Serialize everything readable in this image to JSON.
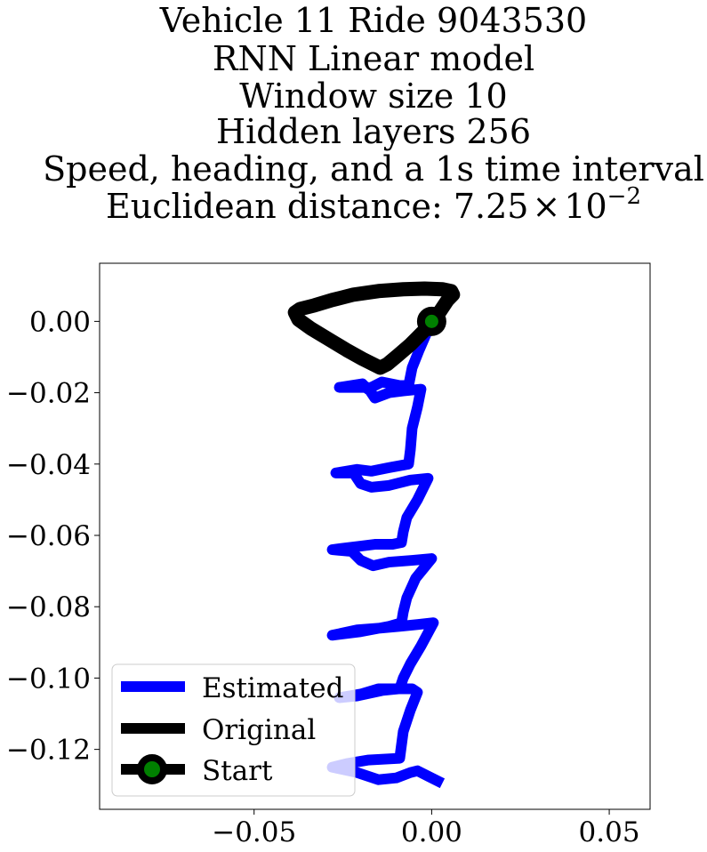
{
  "chart_data": {
    "type": "line",
    "title_lines": [
      "Vehicle 11 Ride 9043530",
      "RNN Linear model",
      "Window size 10",
      "Hidden layers 256",
      "Speed, heading, and a 1s time interval"
    ],
    "title_metric": {
      "prefix": "Euclidean distance: 7.25",
      "times": "×",
      "base": "10",
      "exponent": "−2"
    },
    "xlabel": "",
    "ylabel": "",
    "xlim": [
      -0.0935,
      0.0615
    ],
    "ylim": [
      -0.1368,
      0.0163
    ],
    "x_ticks": [
      -0.05,
      0.0,
      0.05
    ],
    "x_tick_labels": [
      "−0.05",
      "0.00",
      "0.05"
    ],
    "y_ticks": [
      0.0,
      -0.02,
      -0.04,
      -0.06,
      -0.08,
      -0.1,
      -0.12
    ],
    "y_tick_labels": [
      "0.00",
      "−0.02",
      "−0.04",
      "−0.06",
      "−0.08",
      "−0.10",
      "−0.12"
    ],
    "grid": false,
    "legend_position": "lower-left",
    "legend": [
      "Estimated",
      "Original",
      "Start"
    ],
    "colors": {
      "estimated": "#0000ff",
      "original": "#000000",
      "start_marker": "#008000",
      "start_edge": "#000000"
    },
    "series": [
      {
        "name": "Estimated",
        "x": [
          0.0,
          -0.0035,
          -0.0055,
          -0.0065,
          -0.009,
          -0.014,
          -0.018,
          -0.0195,
          -0.026,
          -0.018,
          -0.016,
          -0.012,
          -0.008,
          -0.003,
          -0.004,
          -0.0055,
          -0.006,
          -0.0065,
          -0.012,
          -0.017,
          -0.021,
          -0.027,
          -0.022,
          -0.02,
          -0.017,
          -0.012,
          -0.006,
          -0.001,
          -0.004,
          -0.007,
          -0.008,
          -0.0085,
          -0.011,
          -0.016,
          -0.02,
          -0.028,
          -0.0225,
          -0.02,
          -0.0165,
          -0.012,
          -0.0055,
          0.0,
          -0.0045,
          -0.007,
          -0.008,
          -0.0085,
          -0.012,
          -0.02,
          -0.028,
          -0.021,
          -0.0145,
          -0.009,
          -0.004,
          0.0005,
          -0.003,
          -0.006,
          -0.008,
          -0.009,
          -0.014,
          -0.021,
          -0.026,
          -0.02,
          -0.015,
          -0.01,
          -0.0055,
          -0.004,
          -0.006,
          -0.008,
          -0.009,
          -0.018,
          -0.024,
          -0.028,
          -0.021,
          -0.015,
          -0.01,
          -0.006,
          -0.004,
          -0.001,
          0.003
        ],
        "y": [
          0.0,
          -0.008,
          -0.013,
          -0.018,
          -0.018,
          -0.017,
          -0.019,
          -0.0175,
          -0.0185,
          -0.0185,
          -0.0215,
          -0.02,
          -0.0195,
          -0.019,
          -0.024,
          -0.03,
          -0.036,
          -0.04,
          -0.041,
          -0.042,
          -0.0415,
          -0.0425,
          -0.0425,
          -0.0455,
          -0.0465,
          -0.046,
          -0.0445,
          -0.044,
          -0.05,
          -0.055,
          -0.059,
          -0.062,
          -0.0625,
          -0.0625,
          -0.063,
          -0.064,
          -0.0645,
          -0.067,
          -0.0685,
          -0.0675,
          -0.067,
          -0.0665,
          -0.072,
          -0.0775,
          -0.0815,
          -0.0845,
          -0.0855,
          -0.087,
          -0.088,
          -0.0865,
          -0.086,
          -0.0855,
          -0.085,
          -0.0845,
          -0.091,
          -0.096,
          -0.1,
          -0.103,
          -0.1035,
          -0.105,
          -0.1055,
          -0.1045,
          -0.103,
          -0.103,
          -0.103,
          -0.104,
          -0.109,
          -0.115,
          -0.1225,
          -0.123,
          -0.124,
          -0.125,
          -0.1265,
          -0.1285,
          -0.128,
          -0.1265,
          -0.126,
          -0.1275,
          -0.1295
        ]
      },
      {
        "name": "Original",
        "x": [
          0.0,
          0.0025,
          0.0045,
          0.006,
          0.0055,
          0.003,
          -0.002,
          -0.008,
          -0.015,
          -0.022,
          -0.028,
          -0.033,
          -0.037,
          -0.0385,
          -0.0375,
          -0.034,
          -0.029,
          -0.024,
          -0.0195,
          -0.0165,
          -0.0145,
          -0.0125,
          -0.0095,
          -0.006,
          -0.003,
          -0.001,
          0.0
        ],
        "y": [
          0.0,
          0.003,
          0.006,
          0.0075,
          0.0085,
          0.009,
          0.0092,
          0.009,
          0.0085,
          0.0075,
          0.006,
          0.0045,
          0.0035,
          0.0025,
          0.0005,
          -0.002,
          -0.005,
          -0.008,
          -0.0105,
          -0.012,
          -0.013,
          -0.012,
          -0.0095,
          -0.0065,
          -0.0035,
          -0.0015,
          0.0
        ]
      },
      {
        "name": "Start",
        "x": [
          0.0
        ],
        "y": [
          0.0
        ]
      }
    ]
  }
}
